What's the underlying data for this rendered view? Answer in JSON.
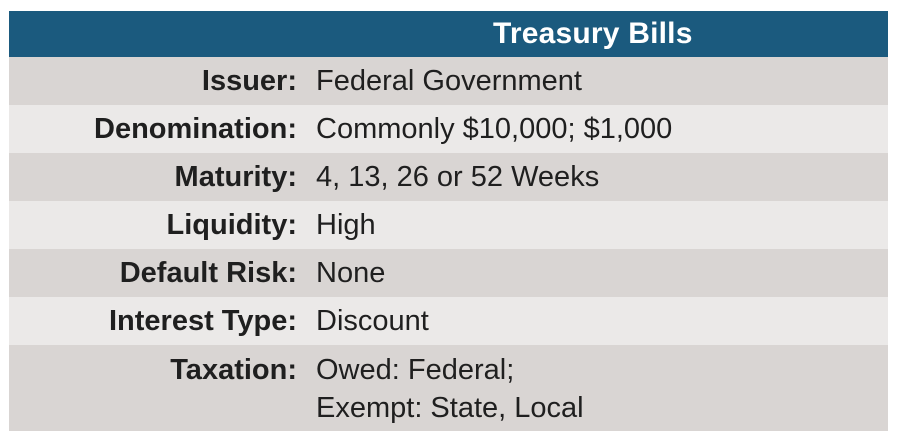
{
  "header": {
    "title": "Treasury Bills"
  },
  "rows": [
    {
      "label": "Issuer:",
      "value": "Federal Government"
    },
    {
      "label": "Denomination:",
      "value": "Commonly $10,000; $1,000"
    },
    {
      "label": "Maturity:",
      "value": "4, 13, 26 or 52 Weeks"
    },
    {
      "label": "Liquidity:",
      "value": "High"
    },
    {
      "label": "Default Risk:",
      "value": "None"
    },
    {
      "label": "Interest Type:",
      "value": "Discount"
    },
    {
      "label": "Taxation:",
      "value_lines": [
        "Owed: Federal;",
        "Exempt: State, Local"
      ]
    }
  ],
  "colors": {
    "header_bg": "#1b5a7e",
    "row_dark": "#d9d5d3",
    "row_light": "#ebe9e8",
    "text": "#1f1f1f"
  }
}
